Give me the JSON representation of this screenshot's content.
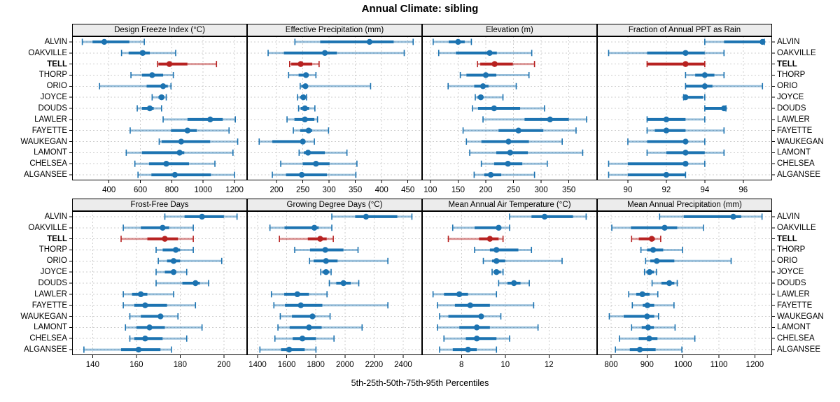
{
  "chart_data": {
    "type": "dotplot-trellis",
    "title": "Annual Climate: sibling",
    "caption": "5th-25th-50th-75th-95th Percentiles",
    "percentiles": [
      5,
      25,
      50,
      75,
      95
    ],
    "legend_position": "none",
    "grid": "dashed",
    "highlight": "TELL",
    "locations": [
      "ALVIN",
      "OAKVILLE",
      "TELL",
      "THORP",
      "ORIO",
      "JOYCE",
      "DOUDS",
      "LAWLER",
      "FAYETTE",
      "WAUKEGAN",
      "LAMONT",
      "CHELSEA",
      "ALGANSEE"
    ],
    "colors": {
      "normal": "#1c73b1",
      "highlight": "#b72221",
      "grid": "#cccccc",
      "strip_bg": "#ececec",
      "border": "#000000"
    },
    "panels": [
      {
        "name": "Design Freeze Index (°C)",
        "row": 0,
        "col": 0,
        "xlim": [
          165,
          1280
        ],
        "ticks": [
          400,
          600,
          800,
          1000,
          1200
        ],
        "values": {
          "ALVIN": [
            230,
            295,
            370,
            530,
            625
          ],
          "OAKVILLE": [
            480,
            525,
            615,
            660,
            825
          ],
          "TELL": [
            710,
            715,
            785,
            900,
            1085
          ],
          "THORP": [
            540,
            610,
            675,
            745,
            810
          ],
          "ORIO": [
            340,
            640,
            745,
            775,
            795
          ],
          "JOYCE": [
            675,
            715,
            735,
            745,
            765
          ],
          "DOUDS": [
            580,
            610,
            660,
            685,
            735
          ],
          "LAWLER": [
            745,
            900,
            1045,
            1125,
            1205
          ],
          "FAYETTE": [
            535,
            795,
            900,
            960,
            1165
          ],
          "WAUKEGAN": [
            720,
            735,
            860,
            1045,
            1220
          ],
          "LAMONT": [
            510,
            610,
            850,
            880,
            1190
          ],
          "CHELSEA": [
            565,
            655,
            765,
            910,
            1075
          ],
          "ALGANSEE": [
            585,
            670,
            820,
            1050,
            1200
          ]
        }
      },
      {
        "name": "Effective Precipitation (mm)",
        "row": 0,
        "col": 1,
        "xlim": [
          144,
          477
        ],
        "ticks": [
          200,
          250,
          300,
          350,
          400,
          450
        ],
        "values": {
          "ALVIN": [
            235,
            283,
            377,
            423,
            460
          ],
          "OAKVILLE": [
            184,
            214,
            292,
            315,
            443
          ],
          "TELL": [
            225,
            228,
            246,
            268,
            281
          ],
          "THORP": [
            223,
            242,
            256,
            261,
            275
          ],
          "ORIO": [
            245,
            247,
            255,
            260,
            379
          ],
          "JOYCE": [
            240,
            245,
            251,
            254,
            257
          ],
          "DOUDS": [
            242,
            246,
            254,
            262,
            273
          ],
          "LAWLER": [
            220,
            234,
            254,
            272,
            278
          ],
          "FAYETTE": [
            232,
            245,
            261,
            268,
            299
          ],
          "WAUKEGAN": [
            167,
            192,
            250,
            253,
            272
          ],
          "LAMONT": [
            243,
            252,
            260,
            292,
            334
          ],
          "CHELSEA": [
            208,
            250,
            275,
            301,
            353
          ],
          "ALGANSEE": [
            192,
            218,
            248,
            296,
            351
          ]
        }
      },
      {
        "name": "Elevation (m)",
        "row": 0,
        "col": 2,
        "xlim": [
          85,
          401
        ],
        "ticks": [
          100,
          150,
          200,
          250,
          300,
          350
        ],
        "values": {
          "ALVIN": [
            105,
            133,
            150,
            162,
            174
          ],
          "OAKVILLE": [
            115,
            146,
            207,
            220,
            283
          ],
          "TELL": [
            185,
            190,
            216,
            249,
            288
          ],
          "THORP": [
            154,
            165,
            200,
            219,
            278
          ],
          "ORIO": [
            132,
            179,
            195,
            205,
            255
          ],
          "JOYCE": [
            181,
            185,
            191,
            195,
            231
          ],
          "DOUDS": [
            176,
            186,
            215,
            262,
            306
          ],
          "LAWLER": [
            195,
            270,
            316,
            350,
            382
          ],
          "FAYETTE": [
            159,
            223,
            259,
            304,
            363
          ],
          "WAUKEGAN": [
            165,
            192,
            241,
            278,
            338
          ],
          "LAMONT": [
            171,
            219,
            244,
            276,
            375
          ],
          "CHELSEA": [
            192,
            215,
            240,
            266,
            311
          ],
          "ALGANSEE": [
            179,
            197,
            209,
            228,
            288
          ]
        }
      },
      {
        "name": "Fraction of Annual PPT as Rain",
        "row": 0,
        "col": 3,
        "xlim": [
          88.4,
          97.5
        ],
        "ticks": [
          90,
          92,
          94,
          96
        ],
        "values": {
          "ALVIN": [
            94,
            95,
            97,
            97,
            97.1
          ],
          "OAKVILLE": [
            89,
            91,
            93,
            94,
            95
          ],
          "TELL": [
            91,
            91,
            93,
            94,
            94
          ],
          "THORP": [
            93,
            93.5,
            94,
            94.5,
            95
          ],
          "ORIO": [
            93,
            93,
            94,
            94.4,
            97
          ],
          "JOYCE": [
            92.9,
            92.9,
            93,
            93.9,
            94
          ],
          "DOUDS": [
            94,
            94,
            95,
            95,
            95.1
          ],
          "LAWLER": [
            91,
            91,
            92,
            93,
            94
          ],
          "FAYETTE": [
            91,
            91.4,
            92,
            93,
            95
          ],
          "WAUKEGAN": [
            90,
            91,
            93,
            93,
            94
          ],
          "LAMONT": [
            91,
            92,
            93,
            94,
            95
          ],
          "CHELSEA": [
            89,
            90,
            93,
            93,
            94
          ],
          "ALGANSEE": [
            89,
            90,
            92,
            93,
            93
          ]
        }
      },
      {
        "name": "Frost-Free Days",
        "row": 1,
        "col": 0,
        "xlim": [
          130.6,
          210.6
        ],
        "ticks": [
          140,
          160,
          180,
          200
        ],
        "values": {
          "ALVIN": [
            173,
            182,
            190,
            200,
            206
          ],
          "OAKVILLE": [
            154,
            162,
            172,
            175,
            186
          ],
          "TELL": [
            153,
            165,
            173,
            179,
            186
          ],
          "THORP": [
            169,
            172,
            178,
            180,
            186
          ],
          "ORIO": [
            170,
            174,
            177,
            180,
            199
          ],
          "JOYCE": [
            169,
            173,
            177,
            178,
            183
          ],
          "DOUDS": [
            169,
            181,
            187,
            189,
            193
          ],
          "LAWLER": [
            154,
            158,
            162,
            165,
            177
          ],
          "FAYETTE": [
            154,
            159,
            164,
            174,
            187
          ],
          "WAUKEGAN": [
            157,
            162,
            171,
            172,
            179
          ],
          "LAMONT": [
            155,
            160,
            166,
            173,
            190
          ],
          "CHELSEA": [
            157,
            159,
            164,
            172,
            183
          ],
          "ALGANSEE": [
            136,
            153,
            161,
            171,
            176
          ]
        }
      },
      {
        "name": "Growing Degree Days (°C)",
        "row": 1,
        "col": 1,
        "xlim": [
          1328,
          2530
        ],
        "ticks": [
          1400,
          1600,
          1800,
          2000,
          2200,
          2400
        ],
        "values": {
          "ALVIN": [
            1910,
            2070,
            2145,
            2360,
            2460
          ],
          "OAKVILLE": [
            1485,
            1585,
            1790,
            1820,
            1910
          ],
          "TELL": [
            1550,
            1745,
            1830,
            1875,
            1920
          ],
          "THORP": [
            1655,
            1760,
            1865,
            1990,
            2090
          ],
          "ORIO": [
            1757,
            1785,
            1870,
            1950,
            2295
          ],
          "JOYCE": [
            1834,
            1845,
            1870,
            1893,
            1905
          ],
          "DOUDS": [
            1893,
            1940,
            1990,
            2040,
            2095
          ],
          "LAWLER": [
            1495,
            1583,
            1673,
            1753,
            1877
          ],
          "FAYETTE": [
            1512,
            1588,
            1697,
            1845,
            2295
          ],
          "WAUKEGAN": [
            1556,
            1636,
            1777,
            1797,
            1898
          ],
          "LAMONT": [
            1540,
            1620,
            1753,
            1840,
            2118
          ],
          "CHELSEA": [
            1519,
            1641,
            1708,
            1801,
            1925
          ],
          "ALGANSEE": [
            1416,
            1561,
            1617,
            1724,
            1801
          ]
        }
      },
      {
        "name": "Mean Annual Air Temperature (°C)",
        "row": 1,
        "col": 2,
        "xlim": [
          6.2,
          14.2
        ],
        "ticks": [
          8,
          10,
          12
        ],
        "values": {
          "ALVIN": [
            10.2,
            11.2,
            11.8,
            13.1,
            13.7
          ],
          "OAKVILLE": [
            7.6,
            8.6,
            9.7,
            9.8,
            10.2
          ],
          "TELL": [
            7.4,
            8.8,
            9.3,
            9.7,
            9.9
          ],
          "THORP": [
            8.6,
            9.3,
            9.6,
            10.6,
            11.2
          ],
          "ORIO": [
            9.0,
            9.4,
            9.6,
            10.0,
            12.6
          ],
          "JOYCE": [
            9.4,
            9.5,
            9.6,
            9.8,
            9.9
          ],
          "DOUDS": [
            9.7,
            10.1,
            10.4,
            10.7,
            11.1
          ],
          "LAWLER": [
            6.7,
            7.2,
            7.9,
            8.3,
            9.6
          ],
          "FAYETTE": [
            6.9,
            7.7,
            8.4,
            9.3,
            11.3
          ],
          "WAUKEGAN": [
            7.0,
            7.4,
            8.9,
            9.0,
            9.8
          ],
          "LAMONT": [
            6.9,
            7.9,
            8.7,
            9.3,
            11.5
          ],
          "CHELSEA": [
            7.2,
            8.2,
            8.7,
            9.6,
            10.2
          ],
          "ALGANSEE": [
            7.0,
            7.6,
            8.3,
            8.7,
            9.6
          ]
        }
      },
      {
        "name": "Mean Annual Precipitation (mm)",
        "row": 1,
        "col": 3,
        "xlim": [
          761,
          1248
        ],
        "ticks": [
          800,
          900,
          1000,
          1100,
          1200
        ],
        "values": {
          "ALVIN": [
            935,
            1002,
            1140,
            1162,
            1220
          ],
          "OAKVILLE": [
            802,
            855,
            949,
            984,
            1057
          ],
          "TELL": [
            857,
            877,
            913,
            922,
            938
          ],
          "THORP": [
            883,
            900,
            917,
            945,
            999
          ],
          "ORIO": [
            896,
            909,
            927,
            976,
            1134
          ],
          "JOYCE": [
            893,
            898,
            907,
            919,
            926
          ],
          "DOUDS": [
            914,
            940,
            962,
            976,
            984
          ],
          "LAWLER": [
            849,
            870,
            887,
            907,
            930
          ],
          "FAYETTE": [
            859,
            888,
            901,
            920,
            975
          ],
          "WAUKEGAN": [
            795,
            835,
            900,
            920,
            932
          ],
          "LAMONT": [
            857,
            885,
            903,
            919,
            978
          ],
          "CHELSEA": [
            823,
            877,
            906,
            929,
            1033
          ],
          "ALGANSEE": [
            812,
            852,
            880,
            924,
            997
          ]
        }
      }
    ]
  }
}
